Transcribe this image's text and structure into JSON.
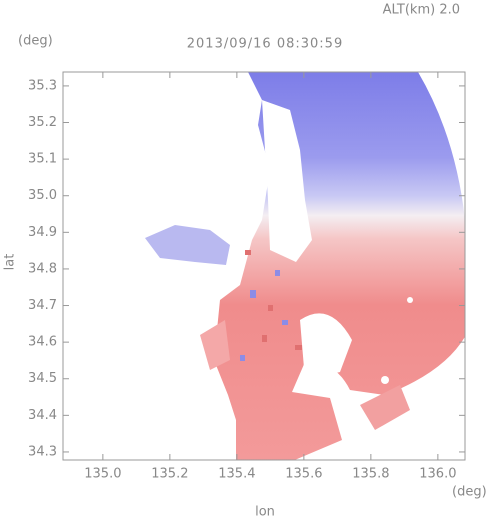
{
  "chart_data": {
    "type": "map",
    "title": "2013/09/16 08:30:59",
    "subtitle": "ALT(km) 2.0",
    "xlabel": "lon",
    "ylabel": "lat",
    "xunit": "(deg)",
    "yunit": "(deg)",
    "xlim": [
      134.881,
      136.081
    ],
    "ylim": [
      34.278,
      35.338
    ],
    "xticks": [
      {
        "value": 135.0,
        "label": "135.0"
      },
      135.2,
      135.4,
      135.6,
      135.8,
      {
        "value": 136.0,
        "label": "136.0"
      }
    ],
    "yticks": [
      34.3,
      34.4,
      34.5,
      34.6,
      34.7,
      34.8,
      34.9,
      {
        "value": 35.0,
        "label": "35.0"
      },
      35.1,
      35.2,
      35.3
    ]
  }
}
